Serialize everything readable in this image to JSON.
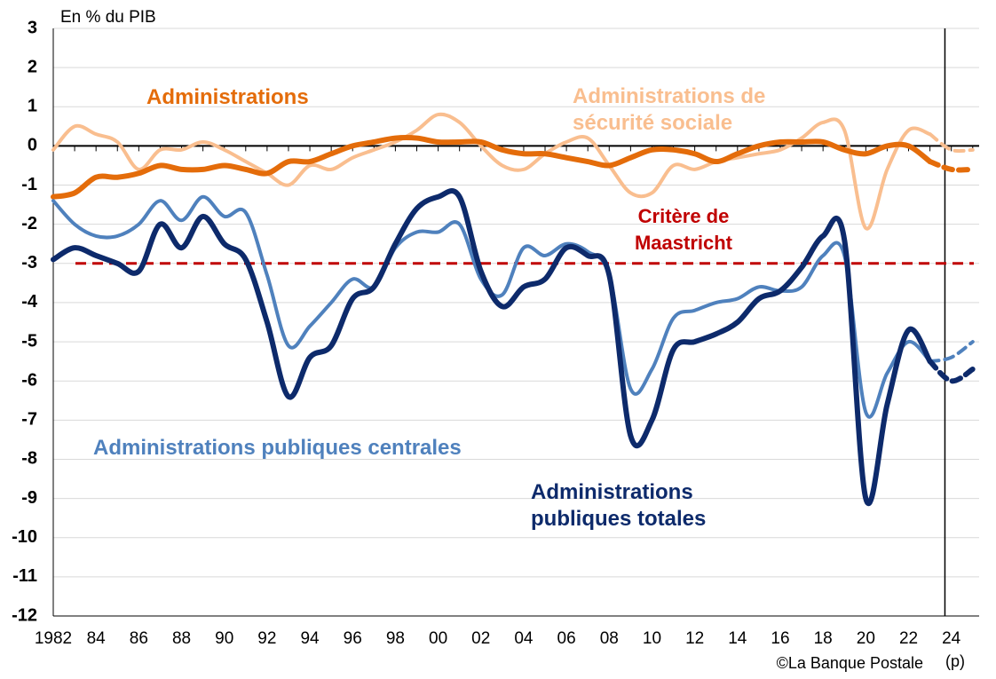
{
  "chart_data": {
    "type": "line",
    "y_axis_label": "En % du PIB",
    "source": "©La Banque Postale",
    "forecast_note": "(p)",
    "xlim": [
      1982,
      2025.3
    ],
    "ylim": [
      -12,
      3
    ],
    "xticks": [
      {
        "value": 1982,
        "label": "1982"
      },
      {
        "value": 1984,
        "label": "84"
      },
      {
        "value": 1986,
        "label": "86"
      },
      {
        "value": 1988,
        "label": "88"
      },
      {
        "value": 1990,
        "label": "90"
      },
      {
        "value": 1992,
        "label": "92"
      },
      {
        "value": 1994,
        "label": "94"
      },
      {
        "value": 1996,
        "label": "96"
      },
      {
        "value": 1998,
        "label": "98"
      },
      {
        "value": 2000,
        "label": "00"
      },
      {
        "value": 2002,
        "label": "02"
      },
      {
        "value": 2004,
        "label": "04"
      },
      {
        "value": 2006,
        "label": "06"
      },
      {
        "value": 2008,
        "label": "08"
      },
      {
        "value": 2010,
        "label": "10"
      },
      {
        "value": 2012,
        "label": "12"
      },
      {
        "value": 2014,
        "label": "14"
      },
      {
        "value": 2016,
        "label": "16"
      },
      {
        "value": 2018,
        "label": "18"
      },
      {
        "value": 2020,
        "label": "20"
      },
      {
        "value": 2022,
        "label": "22"
      },
      {
        "value": 2024,
        "label": "24"
      }
    ],
    "yticks": [
      3,
      2,
      1,
      0,
      -1,
      -2,
      -3,
      -4,
      -5,
      -6,
      -7,
      -8,
      -9,
      -10,
      -11,
      -12
    ],
    "grid": true,
    "forecast_from": 2023,
    "forecast_divider": 2023.7,
    "threshold": {
      "value": -3,
      "label": "Critère de Maastricht",
      "color": "#c00000"
    },
    "x": [
      1982,
      1983,
      1984,
      1985,
      1986,
      1987,
      1988,
      1989,
      1990,
      1991,
      1992,
      1993,
      1994,
      1995,
      1996,
      1997,
      1998,
      1999,
      2000,
      2001,
      2002,
      2003,
      2004,
      2005,
      2006,
      2007,
      2008,
      2009,
      2010,
      2011,
      2012,
      2013,
      2014,
      2015,
      2016,
      2017,
      2018,
      2019,
      2020,
      2021,
      2022,
      2023,
      2024,
      2025
    ],
    "series": [
      {
        "name": "Administrations de sécurité sociale",
        "color": "#f9be8f",
        "width": 4,
        "values": [
          -0.1,
          0.5,
          0.3,
          0.1,
          -0.6,
          -0.1,
          -0.1,
          0.1,
          -0.1,
          -0.4,
          -0.7,
          -1.0,
          -0.5,
          -0.6,
          -0.3,
          -0.1,
          0.1,
          0.4,
          0.8,
          0.6,
          0.0,
          -0.5,
          -0.6,
          -0.2,
          0.1,
          0.2,
          -0.5,
          -1.2,
          -1.2,
          -0.5,
          -0.6,
          -0.4,
          -0.3,
          -0.2,
          -0.1,
          0.2,
          0.6,
          0.4,
          -2.1,
          -0.6,
          0.4,
          0.3,
          -0.1,
          -0.1
        ]
      },
      {
        "name": "Administrations",
        "color": "#e46c0a",
        "width": 6,
        "values": [
          -1.3,
          -1.2,
          -0.8,
          -0.8,
          -0.7,
          -0.5,
          -0.6,
          -0.6,
          -0.5,
          -0.6,
          -0.7,
          -0.4,
          -0.4,
          -0.2,
          0.0,
          0.1,
          0.2,
          0.2,
          0.1,
          0.1,
          0.1,
          -0.1,
          -0.2,
          -0.2,
          -0.3,
          -0.4,
          -0.5,
          -0.3,
          -0.1,
          -0.1,
          -0.2,
          -0.4,
          -0.2,
          0.0,
          0.1,
          0.1,
          0.1,
          -0.1,
          -0.2,
          0.0,
          0.0,
          -0.4,
          -0.6,
          -0.6
        ]
      },
      {
        "name": "Administrations publiques centrales",
        "color": "#4f81bd",
        "width": 4,
        "values": [
          -1.4,
          -2.0,
          -2.3,
          -2.3,
          -2.0,
          -1.4,
          -1.9,
          -1.3,
          -1.8,
          -1.7,
          -3.3,
          -5.1,
          -4.6,
          -4.0,
          -3.4,
          -3.6,
          -2.6,
          -2.2,
          -2.2,
          -2.0,
          -3.4,
          -3.8,
          -2.6,
          -2.8,
          -2.5,
          -2.7,
          -3.3,
          -6.2,
          -5.7,
          -4.4,
          -4.2,
          -4.0,
          -3.9,
          -3.6,
          -3.7,
          -3.6,
          -2.8,
          -2.8,
          -6.8,
          -5.8,
          -5.0,
          -5.5,
          -5.4,
          -5.0
        ]
      },
      {
        "name": "Administrations publiques totales",
        "color": "#0d2a6b",
        "width": 6,
        "values": [
          -2.9,
          -2.6,
          -2.8,
          -3.0,
          -3.2,
          -2.0,
          -2.6,
          -1.8,
          -2.5,
          -2.9,
          -4.5,
          -6.4,
          -5.4,
          -5.1,
          -3.9,
          -3.6,
          -2.5,
          -1.6,
          -1.3,
          -1.3,
          -3.2,
          -4.1,
          -3.6,
          -3.4,
          -2.6,
          -2.8,
          -3.3,
          -7.4,
          -7.0,
          -5.2,
          -5.0,
          -4.8,
          -4.5,
          -3.9,
          -3.7,
          -3.1,
          -2.3,
          -2.4,
          -9.0,
          -6.6,
          -4.7,
          -5.5,
          -6.0,
          -5.7
        ]
      }
    ]
  }
}
